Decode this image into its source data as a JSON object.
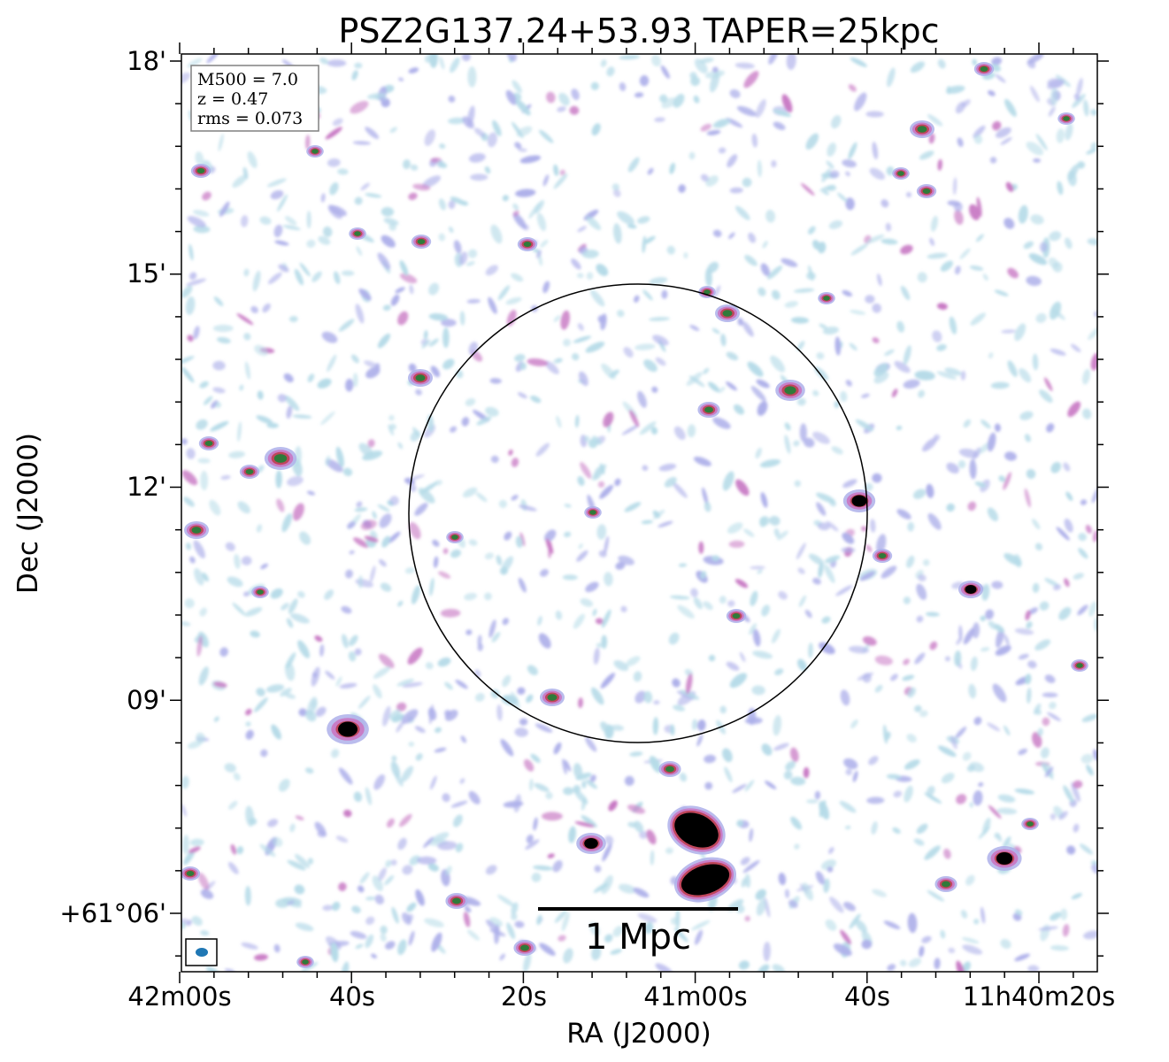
{
  "chart_data": {
    "type": "heatmap",
    "title": "PSZ2G137.24+53.93 TAPER=25kpc",
    "xlabel": "RA (J2000)",
    "ylabel": "Dec (J2000)",
    "x_ticks": [
      "42m00s",
      "40s",
      "20s",
      "41m00s",
      "40s",
      "11h40m20s"
    ],
    "y_ticks": [
      "+61°06'",
      "09'",
      "12'",
      "15'",
      "18'"
    ],
    "info_box": [
      "M500 = 7.0",
      "z = 0.47",
      "rms = 0.073"
    ],
    "scale_bar_label": "1 Mpc",
    "colors": {
      "faint": "#b6dbe8",
      "low": "#aeb0ea",
      "mid": "#c879c4",
      "high": "#c0465c",
      "core": "#2f7a3a",
      "peak": "#000000"
    }
  }
}
